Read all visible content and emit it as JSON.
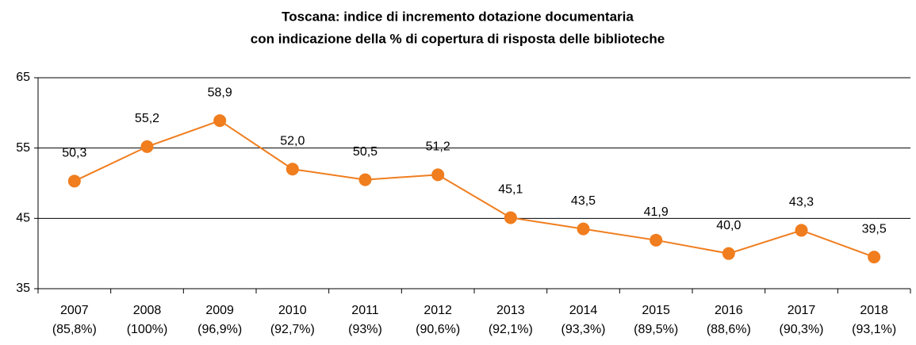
{
  "chart_data": {
    "type": "line",
    "title": "Toscana: indice di incremento dotazione documentaria",
    "subtitle": "con indicazione della % di copertura di risposta delle biblioteche",
    "categories": [
      "2007",
      "2008",
      "2009",
      "2010",
      "2011",
      "2012",
      "2013",
      "2014",
      "2015",
      "2016",
      "2017",
      "2018"
    ],
    "coverage": [
      "(85,8%)",
      "(100%)",
      "(96,9%)",
      "(92,7%)",
      "(93%)",
      "(90,6%)",
      "(92,1%)",
      "(93,3%)",
      "(89,5%)",
      "(88,6%)",
      "(90,3%)",
      "(93,1%)"
    ],
    "values": [
      50.3,
      55.2,
      58.9,
      52.0,
      50.5,
      51.2,
      45.1,
      43.5,
      41.9,
      40.0,
      43.3,
      39.5
    ],
    "value_labels": [
      "50,3",
      "55,2",
      "58,9",
      "52,0",
      "50,5",
      "51,2",
      "45,1",
      "43,5",
      "41,9",
      "40,0",
      "43,3",
      "39,5"
    ],
    "color": "#f07d1e",
    "ylim": [
      35,
      65
    ],
    "yticks": [
      35,
      45,
      55,
      65
    ],
    "grid": true
  }
}
